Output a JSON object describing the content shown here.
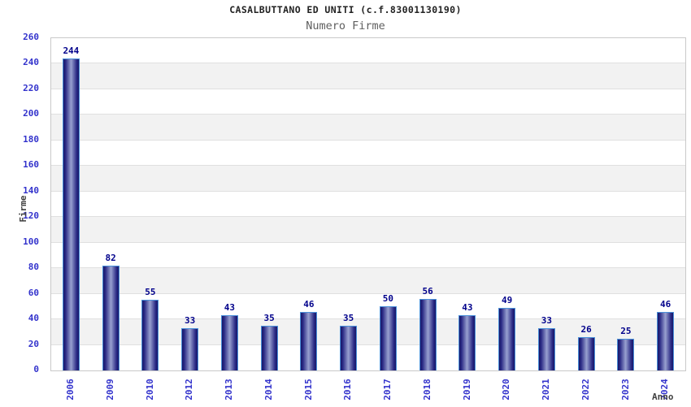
{
  "chart_data": {
    "type": "bar",
    "title": "CASALBUTTANO ED UNITI (c.f.83001130190)",
    "subtitle": "Numero Firme",
    "xlabel": "Anno",
    "ylabel": "Firme",
    "categories": [
      "2006",
      "2009",
      "2010",
      "2012",
      "2013",
      "2014",
      "2015",
      "2016",
      "2017",
      "2018",
      "2019",
      "2020",
      "2021",
      "2022",
      "2023",
      "2024"
    ],
    "values": [
      244,
      82,
      55,
      33,
      43,
      35,
      46,
      35,
      50,
      56,
      43,
      49,
      33,
      26,
      25,
      46
    ],
    "ylim": [
      0,
      260
    ],
    "ytick_step": 20,
    "grid": true,
    "legend": "none",
    "bar_value_labels": true,
    "colors": {
      "title": "#222222",
      "subtitle": "#5f5f5f",
      "tick_label": "#3333cc",
      "value_label": "#00008b",
      "axis_title": "#404040",
      "band": "#f2f2f2",
      "band_alt": "#ffffff",
      "gridline": "#e0e0e0",
      "plot_border": "#c9c9c9",
      "bar_stroke": "#4a90d9",
      "bar_dark": "#171768",
      "bar_mid": "#2a2a85",
      "bar_light": "#98a0d0"
    }
  }
}
